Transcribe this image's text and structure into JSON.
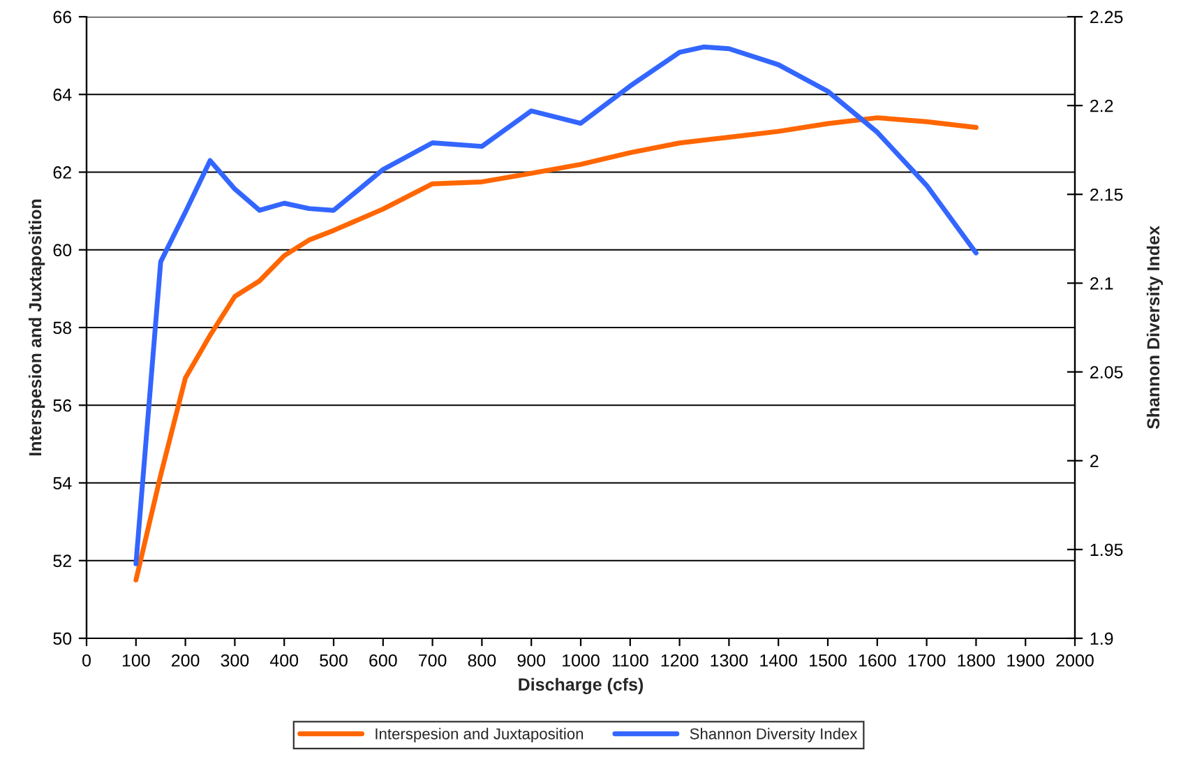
{
  "chart_data": {
    "type": "line",
    "xlabel": "Discharge (cfs)",
    "ylabel": "Interspesion and Juxtaposition",
    "y2label": "Shannon Diversity Index",
    "xlim": [
      0,
      2000
    ],
    "xticks": [
      0,
      100,
      200,
      300,
      400,
      500,
      600,
      700,
      800,
      900,
      1000,
      1100,
      1200,
      1300,
      1400,
      1500,
      1600,
      1700,
      1800,
      1900,
      2000
    ],
    "ylim": [
      50,
      66
    ],
    "yticks": [
      50,
      52,
      54,
      56,
      58,
      60,
      62,
      64,
      66
    ],
    "y2lim": [
      1.9,
      2.25
    ],
    "y2ticks": [
      1.9,
      1.95,
      2,
      2.05,
      2.1,
      2.15,
      2.2,
      2.25
    ],
    "grid": "y",
    "legend": "bottom",
    "line_style": "solid",
    "marker": "none",
    "series": [
      {
        "name": "Interspesion and Juxtaposition",
        "color": "#ff6600",
        "x": [
          100,
          150,
          200,
          250,
          300,
          350,
          400,
          450,
          500,
          600,
          700,
          800,
          900,
          1000,
          1100,
          1200,
          1300,
          1400,
          1500,
          1600,
          1700,
          1800
        ],
        "values": [
          51.5,
          54.2,
          56.7,
          57.8,
          58.8,
          59.2,
          59.85,
          60.25,
          60.5,
          61.05,
          61.7,
          61.75,
          61.97,
          62.2,
          62.5,
          62.75,
          62.9,
          63.05,
          63.25,
          63.4,
          63.3,
          63.15
        ]
      },
      {
        "name": "Shannon Diversity Index",
        "color": "#3366ff",
        "axis": "y2",
        "x": [
          100,
          150,
          200,
          250,
          300,
          350,
          400,
          450,
          500,
          600,
          700,
          800,
          900,
          1000,
          1100,
          1200,
          1250,
          1300,
          1400,
          1500,
          1600,
          1700,
          1800
        ],
        "values": [
          1.942,
          2.112,
          2.14,
          2.169,
          2.153,
          2.141,
          2.145,
          2.142,
          2.141,
          2.164,
          2.179,
          2.177,
          2.197,
          2.19,
          2.211,
          2.23,
          2.233,
          2.232,
          2.223,
          2.208,
          2.185,
          2.155,
          2.117
        ]
      }
    ]
  }
}
